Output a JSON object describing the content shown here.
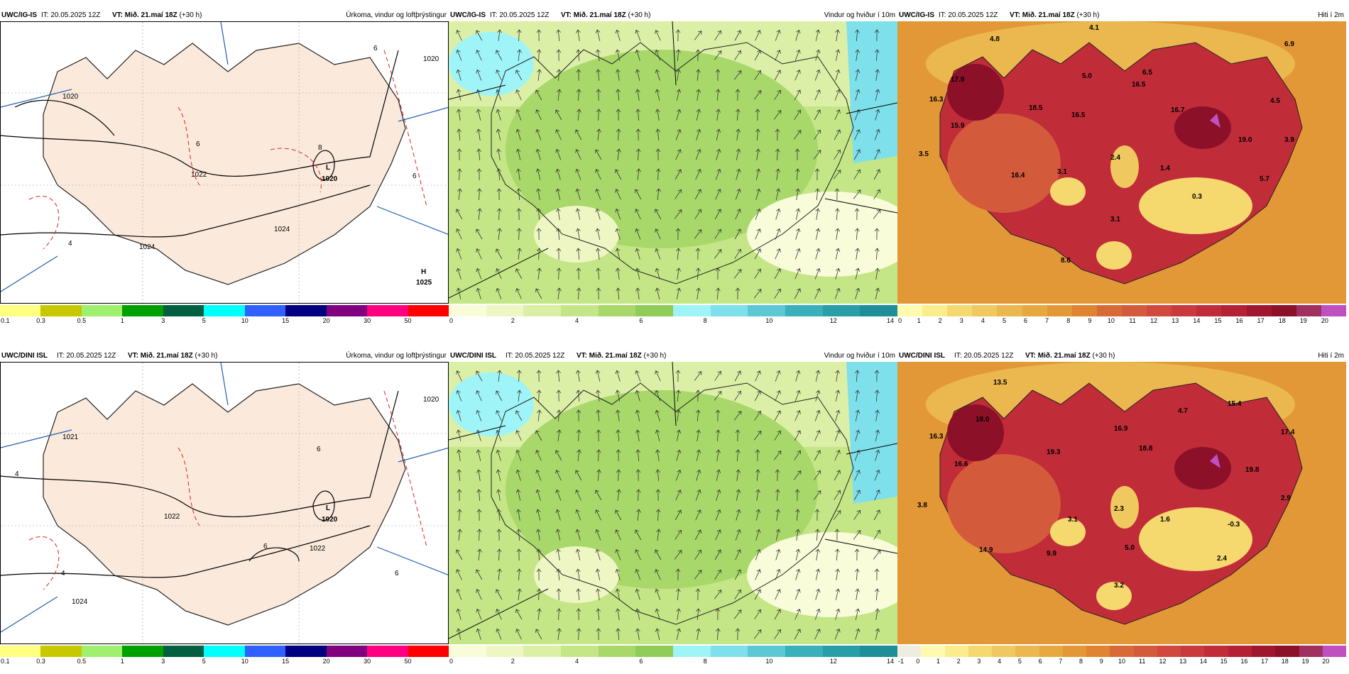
{
  "rows": [
    {
      "model": "UWC/IG-IS",
      "panels": [
        {
          "id": "precip",
          "title": "Úrkoma, vindur og loftþrýstingur",
          "low_label": "L",
          "low_value": "1020",
          "high_label": "H",
          "high_value": "1025",
          "isobars": [
            "1020",
            "1022",
            "1024",
            "1024",
            "1020"
          ],
          "contours": [
            "6",
            "6",
            "8",
            "4",
            "6"
          ]
        },
        {
          "id": "wind",
          "title": "Vindur og hviður í 10m"
        },
        {
          "id": "temp",
          "title": "Hiti í 2m",
          "values": [
            "4.8",
            "4.1",
            "6.9",
            "17.9",
            "16.3",
            "5.0",
            "16.5",
            "6.5",
            "4.5",
            "15.9",
            "18.5",
            "16.5",
            "16.7",
            "19.0",
            "3.9",
            "3.5",
            "2.4",
            "3.1",
            "1.4",
            "16.4",
            "5.7",
            "0.3",
            "3.1",
            "8.6"
          ]
        }
      ]
    },
    {
      "model": "UWC/DINI ISL",
      "panels": [
        {
          "id": "precip",
          "title": "Úrkoma, vindur og loftþrýstingur",
          "low_label": "L",
          "low_value": "1020",
          "isobars": [
            "1021",
            "1020",
            "1022",
            "1022",
            "1024"
          ],
          "contours": [
            "6",
            "6",
            "6",
            "4",
            "4"
          ]
        },
        {
          "id": "wind",
          "title": "Vindur og hviður í 10m"
        },
        {
          "id": "temp",
          "title": "Hiti í 2m",
          "values": [
            "13.5",
            "15.4",
            "4.7",
            "18.0",
            "16.9",
            "17.4",
            "16.3",
            "19.3",
            "18.8",
            "16.6",
            "19.8",
            "2.9",
            "3.8",
            "3.1",
            "2.3",
            "1.6",
            "-0.3",
            "14.9",
            "9.9",
            "5.0",
            "2.4",
            "3.2"
          ]
        }
      ]
    }
  ],
  "it_text": "IT: 20.05.2025 12Z",
  "vt_label": "VT:",
  "vt_bold": "Mið. 21.maí 18Z",
  "vt_suffix": "(+30 h)",
  "colorbars": {
    "precip": {
      "colors": [
        "#ffff80",
        "#c8c800",
        "#a0f070",
        "#00a000",
        "#006040",
        "#00ffff",
        "#3060ff",
        "#000080",
        "#800080",
        "#ff0080",
        "#ff0000"
      ],
      "ticks": [
        "0.1",
        "0.3",
        "0.5",
        "1",
        "3",
        "5",
        "10",
        "15",
        "20",
        "30",
        "50"
      ]
    },
    "wind": {
      "colors": [
        "#f8fcd8",
        "#eef7c4",
        "#dcefa6",
        "#c4e686",
        "#a8d86a",
        "#8fcc58",
        "#9ff4f8",
        "#7ee0ea",
        "#5cc8d4",
        "#3ab0ba",
        "#2a9ea6",
        "#1e8f99"
      ],
      "ticks": [
        "0",
        "2",
        "4",
        "6",
        "8",
        "10",
        "12",
        "14"
      ]
    },
    "temp_top": {
      "colors": [
        "#fffab0",
        "#fbec8c",
        "#f5d86e",
        "#f0c860",
        "#ebb850",
        "#e8a840",
        "#e39838",
        "#df8430",
        "#d86a38",
        "#d45a3c",
        "#d0483e",
        "#c83a3c",
        "#c02c38",
        "#b42034",
        "#a0162e",
        "#8c1028",
        "#a03060",
        "#c050c0"
      ],
      "ticks": [
        "0",
        "1",
        "2",
        "3",
        "4",
        "5",
        "6",
        "7",
        "8",
        "9",
        "10",
        "11",
        "12",
        "13",
        "14",
        "15",
        "16",
        "17",
        "18",
        "19",
        "20"
      ]
    },
    "temp_bottom": {
      "colors": [
        "#eeeee0",
        "#fffab0",
        "#fbec8c",
        "#f5d86e",
        "#f0c860",
        "#ebb850",
        "#e8a840",
        "#e39838",
        "#df8430",
        "#d86a38",
        "#d45a3c",
        "#d0483e",
        "#c83a3c",
        "#c02c38",
        "#b42034",
        "#a0162e",
        "#8c1028",
        "#a03060",
        "#c050c0"
      ],
      "ticks": [
        "-1",
        "0",
        "1",
        "2",
        "3",
        "4",
        "5",
        "6",
        "7",
        "8",
        "9",
        "10",
        "11",
        "12",
        "13",
        "14",
        "15",
        "16",
        "17",
        "18",
        "19",
        "20"
      ]
    }
  }
}
